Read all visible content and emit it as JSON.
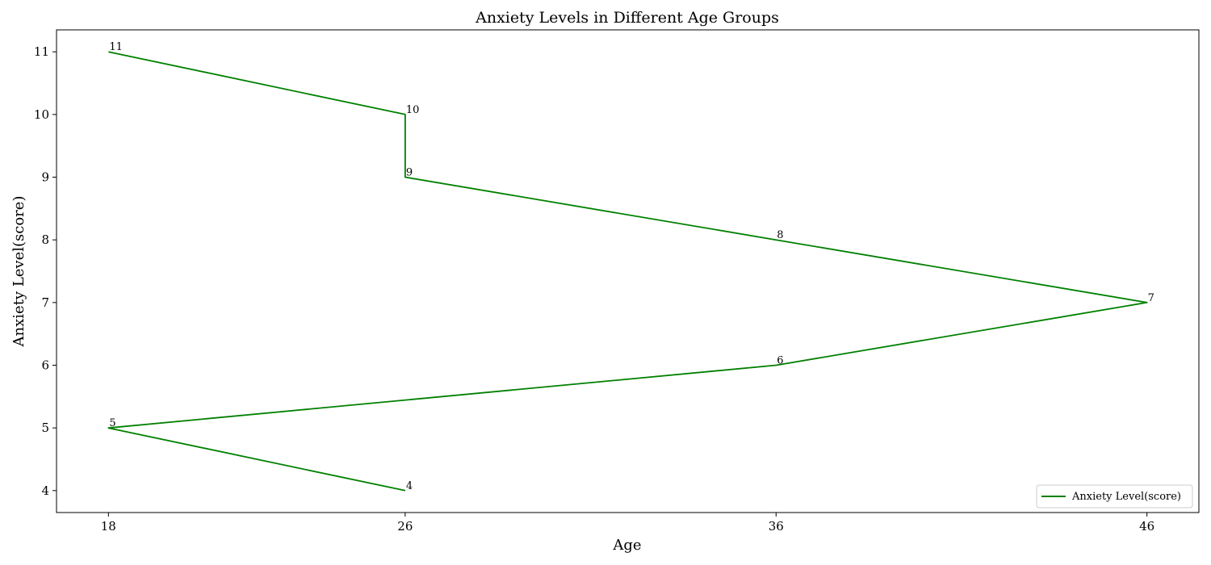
{
  "chart_data": {
    "type": "line",
    "title": "Anxiety Levels in Different Age Groups",
    "xlabel": "Age",
    "ylabel": "Anxiety Level(score)",
    "x_ticks": [
      18,
      26,
      36,
      46
    ],
    "y_ticks": [
      4,
      5,
      6,
      7,
      8,
      9,
      10,
      11
    ],
    "xlim": [
      16.6,
      47.4
    ],
    "ylim": [
      3.65,
      11.35
    ],
    "grid": false,
    "legend_position": "lower-right",
    "series": [
      {
        "name": "Anxiety Level(score)",
        "color": "#008000",
        "points": [
          {
            "x": 26,
            "y": 4
          },
          {
            "x": 18,
            "y": 5
          },
          {
            "x": 36,
            "y": 6
          },
          {
            "x": 46,
            "y": 7
          },
          {
            "x": 36,
            "y": 8
          },
          {
            "x": 26,
            "y": 9
          },
          {
            "x": 26,
            "y": 10
          },
          {
            "x": 18,
            "y": 11
          }
        ]
      }
    ]
  }
}
